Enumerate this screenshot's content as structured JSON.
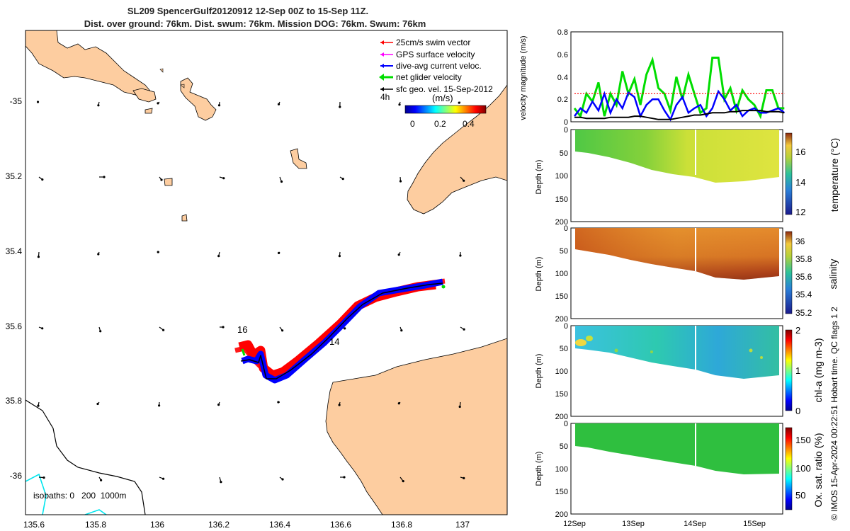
{
  "title": {
    "line1": "SL209 SpencerGulf20120912 12-Sep 00Z to 15-Sep 11Z.",
    "line2": "Dist. over ground: 76km. Dist. swum: 76km. Mission DOG: 76km. Swum: 76km"
  },
  "map": {
    "lon_ticks": [
      "135.6",
      "135.8",
      "136",
      "136.2",
      "136.4",
      "136.6",
      "136.8",
      "137"
    ],
    "lat_ticks": [
      "-35",
      "35.2",
      "35.4",
      "35.6",
      "35.8",
      "-36"
    ],
    "legend": [
      {
        "label": "25cm/s swim vector",
        "color": "#ff0000"
      },
      {
        "label": "GPS surface velocity",
        "color": "#ff00ff"
      },
      {
        "label": "dive-avg current veloc.",
        "color": "#0000ff"
      },
      {
        "label": "net glider velocity",
        "color": "#00dd00"
      },
      {
        "label": "sfc geo. vel. 15-Sep-2012",
        "color": "#000000"
      }
    ],
    "legend_time_label": "4h",
    "colorbar": {
      "unit": "(m/s)",
      "ticks": [
        "0",
        "0.2",
        "0.4"
      ]
    },
    "track_labels": [
      "16",
      "14"
    ],
    "isobath_text": "isobaths: 0   200  1000m",
    "land_color": "#fdcda0"
  },
  "chart_data": [
    {
      "type": "line",
      "ylabel": "velocity magnitude (m/s)",
      "ylim": [
        0,
        0.8
      ],
      "yticks": [
        "0",
        "0.2",
        "0.4",
        "0.6",
        "0.8"
      ],
      "x": [
        12.0,
        12.1,
        12.2,
        12.3,
        12.4,
        12.5,
        12.6,
        12.7,
        12.8,
        12.9,
        13.0,
        13.1,
        13.2,
        13.3,
        13.4,
        13.5,
        13.6,
        13.7,
        13.8,
        13.9,
        14.0,
        14.1,
        14.2,
        14.3,
        14.4,
        14.5,
        14.6,
        14.7,
        14.8,
        14.9,
        15.0,
        15.1,
        15.2,
        15.3,
        15.4,
        15.5
      ],
      "series": [
        {
          "color": "#00dd00",
          "values": [
            0.12,
            0.05,
            0.25,
            0.18,
            0.35,
            0.05,
            0.25,
            0.15,
            0.45,
            0.25,
            0.38,
            0.15,
            0.42,
            0.55,
            0.3,
            0.25,
            0.1,
            0.4,
            0.2,
            0.42,
            0.25,
            0.08,
            0.12,
            0.57,
            0.57,
            0.2,
            0.3,
            0.1,
            0.28,
            0.2,
            0.15,
            0.05,
            0.28,
            0.28,
            0.12,
            0.12
          ]
        },
        {
          "color": "#0000ff",
          "values": [
            0.05,
            0.12,
            0.08,
            0.18,
            0.1,
            0.25,
            0.08,
            0.2,
            0.12,
            0.26,
            0.22,
            0.05,
            0.15,
            0.2,
            0.2,
            0.1,
            0.02,
            0.15,
            0.22,
            0.08,
            0.12,
            0.15,
            0.05,
            0.12,
            0.27,
            0.2,
            0.1,
            0.15,
            0.05,
            0.1,
            0.12,
            0.08,
            0.08,
            0.1,
            0.12,
            0.08
          ]
        },
        {
          "color": "#ff0000",
          "values": [
            0.25,
            0.25,
            0.25,
            0.25,
            0.25,
            0.25,
            0.25,
            0.25,
            0.25,
            0.25,
            0.25,
            0.25,
            0.25,
            0.25,
            0.25,
            0.25,
            0.25,
            0.25,
            0.25,
            0.25,
            0.25,
            0.25,
            0.25,
            0.25,
            0.25,
            0.25,
            0.25,
            0.25,
            0.25,
            0.25,
            0.25,
            0.25,
            0.25,
            0.25,
            0.25,
            0.25
          ]
        },
        {
          "color": "#000000",
          "values": [
            0.04,
            0.04,
            0.03,
            0.03,
            0.03,
            0.03,
            0.04,
            0.04,
            0.04,
            0.04,
            0.05,
            0.05,
            0.04,
            0.03,
            0.02,
            0.02,
            0.02,
            0.03,
            0.04,
            0.05,
            0.06,
            0.06,
            0.07,
            0.08,
            0.08,
            0.08,
            0.09,
            0.09,
            0.1,
            0.1,
            0.1,
            0.1,
            0.09,
            0.09,
            0.09,
            0.08
          ]
        }
      ]
    },
    {
      "type": "heatmap",
      "ylabel": "Depth (m)",
      "ylim": [
        0,
        200
      ],
      "yticks": [
        "0",
        "50",
        "100",
        "150",
        "200"
      ],
      "cbar_label": "temperature (°C)",
      "cbar_ticks": [
        "12",
        "14",
        "16"
      ],
      "cbar_range": [
        11.5,
        17.5
      ]
    },
    {
      "type": "heatmap",
      "ylabel": "Depth (m)",
      "ylim": [
        0,
        200
      ],
      "yticks": [
        "0",
        "50",
        "100",
        "150",
        "200"
      ],
      "cbar_label": "salinity",
      "cbar_ticks": [
        "35.2",
        "35.4",
        "35.6",
        "35.8",
        "36"
      ],
      "cbar_range": [
        35.15,
        36.1
      ]
    },
    {
      "type": "heatmap",
      "ylabel": "Depth (m)",
      "ylim": [
        0,
        200
      ],
      "yticks": [
        "0",
        "50",
        "100",
        "150",
        "200"
      ],
      "cbar_label": "chl-a (mg m-3)",
      "cbar_ticks": [
        "0",
        "1",
        "2"
      ],
      "cbar_range": [
        0,
        2
      ]
    },
    {
      "type": "heatmap",
      "ylabel": "Depth (m)",
      "ylim": [
        0,
        200
      ],
      "yticks": [
        "0",
        "50",
        "100",
        "150",
        "200"
      ],
      "cbar_label": "Ox. sat. ratio (%)",
      "cbar_ticks": [
        "50",
        "100",
        "150"
      ],
      "cbar_range": [
        20,
        175
      ]
    }
  ],
  "time_axis": {
    "ticks": [
      "12Sep",
      "13Sep",
      "14Sep",
      "15Sep"
    ]
  },
  "footer": "© IMOS 15-Apr-2024 00:22:51 Hobart time. QC flags 1  2"
}
